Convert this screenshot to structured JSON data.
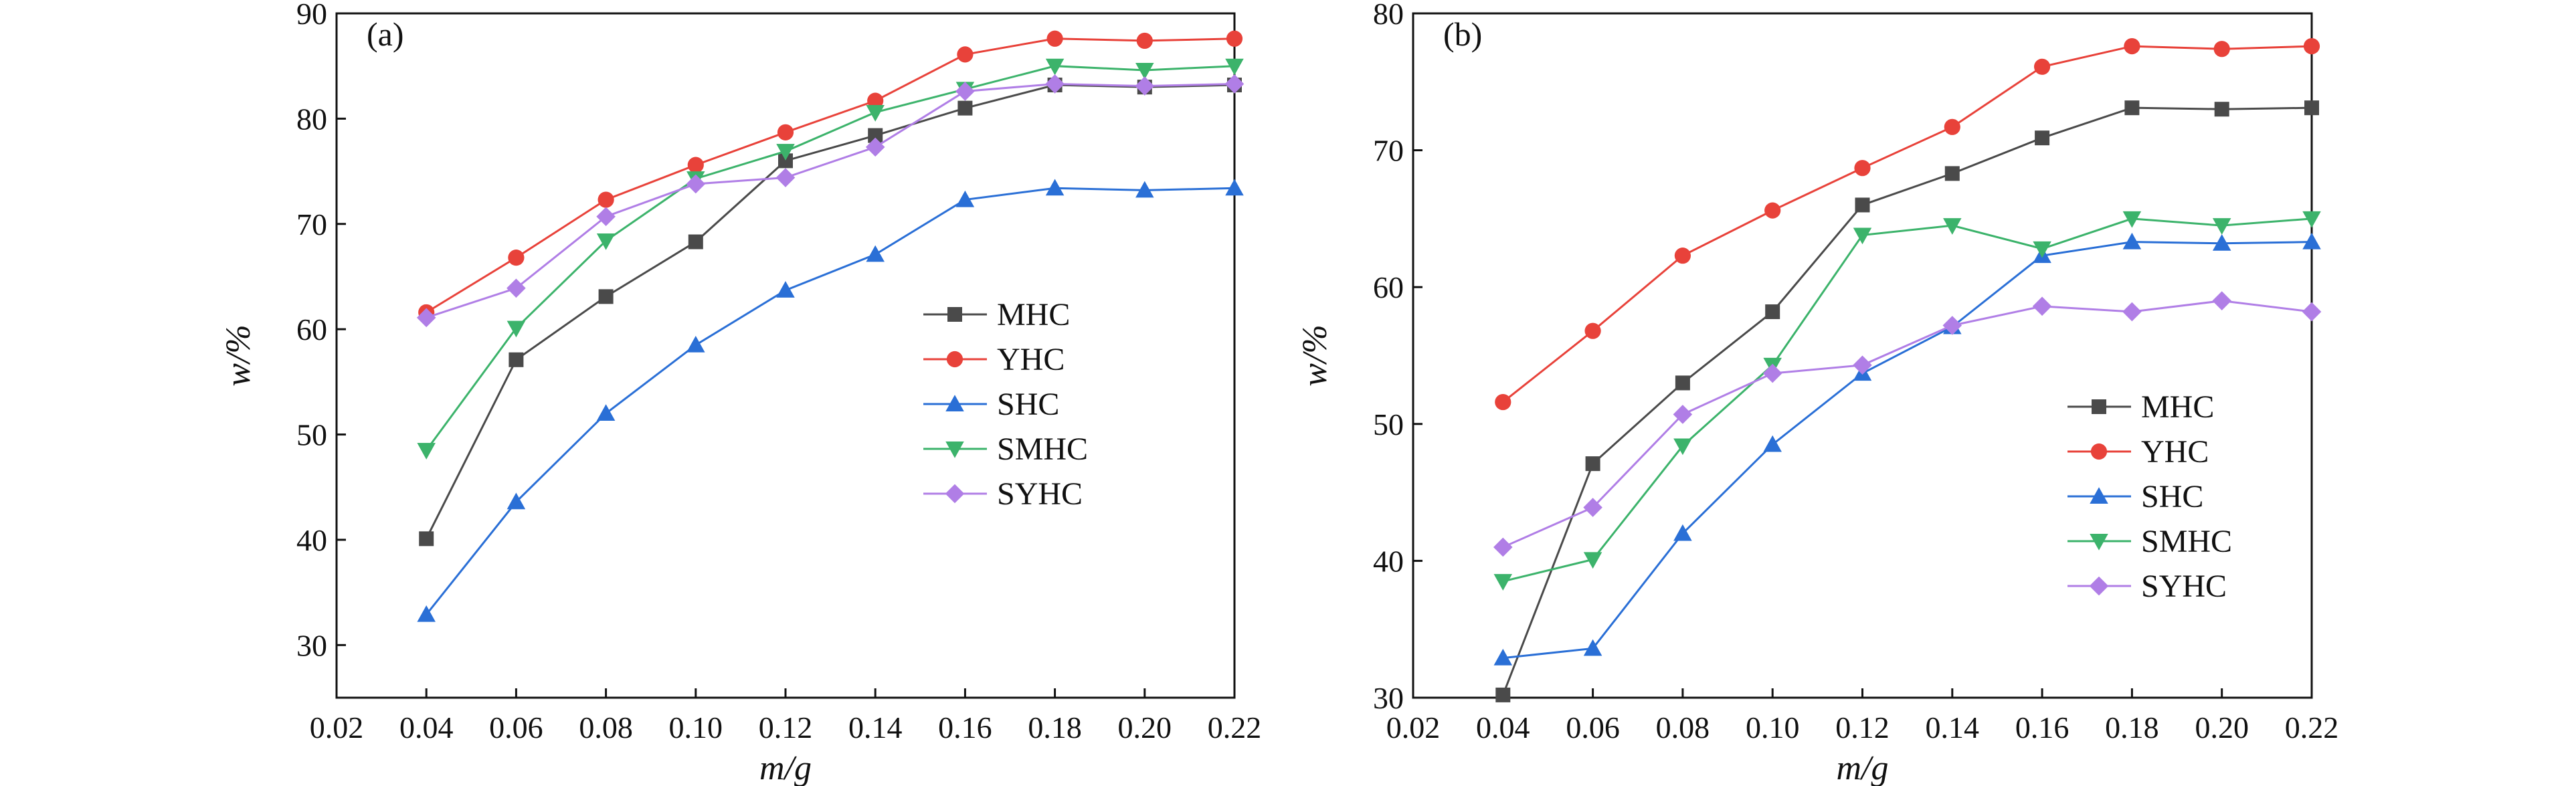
{
  "chart_data": [
    {
      "type": "line",
      "panel_label": "(a)",
      "xlabel": "m/g",
      "ylabel": "w/%",
      "xlim": [
        0.02,
        0.22
      ],
      "ylim": [
        25,
        90
      ],
      "xticks": [
        "0.02",
        "0.04",
        "0.06",
        "0.08",
        "0.10",
        "0.12",
        "0.14",
        "0.16",
        "0.18",
        "0.20",
        "0.22"
      ],
      "yticks": [
        "30",
        "40",
        "50",
        "60",
        "70",
        "80",
        "90"
      ],
      "legend_position": "center-right",
      "grid": false,
      "x": [
        0.04,
        0.06,
        0.08,
        0.1,
        0.12,
        0.14,
        0.16,
        0.18,
        0.2,
        0.22
      ],
      "series": [
        {
          "name": "MHC",
          "color": "#4a4a4a",
          "marker": "square",
          "values": [
            40.1,
            57.1,
            63.1,
            68.3,
            76.0,
            78.4,
            81.0,
            83.2,
            83.0,
            83.2
          ]
        },
        {
          "name": "YHC",
          "color": "#e8423a",
          "marker": "circle",
          "values": [
            61.6,
            66.8,
            72.3,
            75.6,
            78.7,
            81.7,
            86.1,
            87.6,
            87.4,
            87.6
          ]
        },
        {
          "name": "SHC",
          "color": "#2a6fd6",
          "marker": "triangle-up",
          "values": [
            32.9,
            43.6,
            52.0,
            58.5,
            63.7,
            67.1,
            72.3,
            73.4,
            73.2,
            73.4
          ]
        },
        {
          "name": "SMHC",
          "color": "#3cb36b",
          "marker": "triangle-down",
          "values": [
            48.5,
            60.1,
            68.4,
            74.3,
            76.9,
            80.6,
            82.8,
            85.0,
            84.6,
            85.0
          ]
        },
        {
          "name": "SYHC",
          "color": "#b07ee6",
          "marker": "diamond",
          "values": [
            61.1,
            63.9,
            70.7,
            73.8,
            74.4,
            77.3,
            82.6,
            83.3,
            83.1,
            83.3
          ]
        }
      ]
    },
    {
      "type": "line",
      "panel_label": "(b)",
      "xlabel": "m/g",
      "ylabel": "w/%",
      "xlim": [
        0.02,
        0.22
      ],
      "ylim": [
        30,
        80
      ],
      "xticks": [
        "0.02",
        "0.04",
        "0.06",
        "0.08",
        "0.10",
        "0.12",
        "0.14",
        "0.16",
        "0.18",
        "0.20",
        "0.22"
      ],
      "yticks": [
        "30",
        "40",
        "50",
        "60",
        "70",
        "80"
      ],
      "legend_position": "center-right",
      "grid": false,
      "x": [
        0.04,
        0.06,
        0.08,
        0.1,
        0.12,
        0.14,
        0.16,
        0.18,
        0.2,
        0.22
      ],
      "series": [
        {
          "name": "MHC",
          "color": "#4a4a4a",
          "marker": "square",
          "values": [
            30.2,
            47.1,
            53.0,
            58.2,
            66.0,
            68.3,
            70.9,
            73.1,
            73.0,
            73.1
          ]
        },
        {
          "name": "YHC",
          "color": "#e8423a",
          "marker": "circle",
          "values": [
            51.6,
            56.8,
            62.3,
            65.6,
            68.7,
            71.7,
            76.1,
            77.6,
            77.4,
            77.6
          ]
        },
        {
          "name": "SHC",
          "color": "#2a6fd6",
          "marker": "triangle-up",
          "values": [
            32.9,
            33.6,
            42.0,
            48.5,
            53.7,
            57.1,
            62.3,
            63.3,
            63.2,
            63.3
          ]
        },
        {
          "name": "SMHC",
          "color": "#3cb36b",
          "marker": "triangle-down",
          "values": [
            38.5,
            40.1,
            48.4,
            54.3,
            63.8,
            64.5,
            62.8,
            65.0,
            64.5,
            65.0
          ]
        },
        {
          "name": "SYHC",
          "color": "#b07ee6",
          "marker": "diamond",
          "values": [
            41.0,
            43.9,
            50.7,
            53.7,
            54.3,
            57.2,
            58.6,
            58.2,
            59.0,
            58.2
          ]
        }
      ]
    }
  ]
}
